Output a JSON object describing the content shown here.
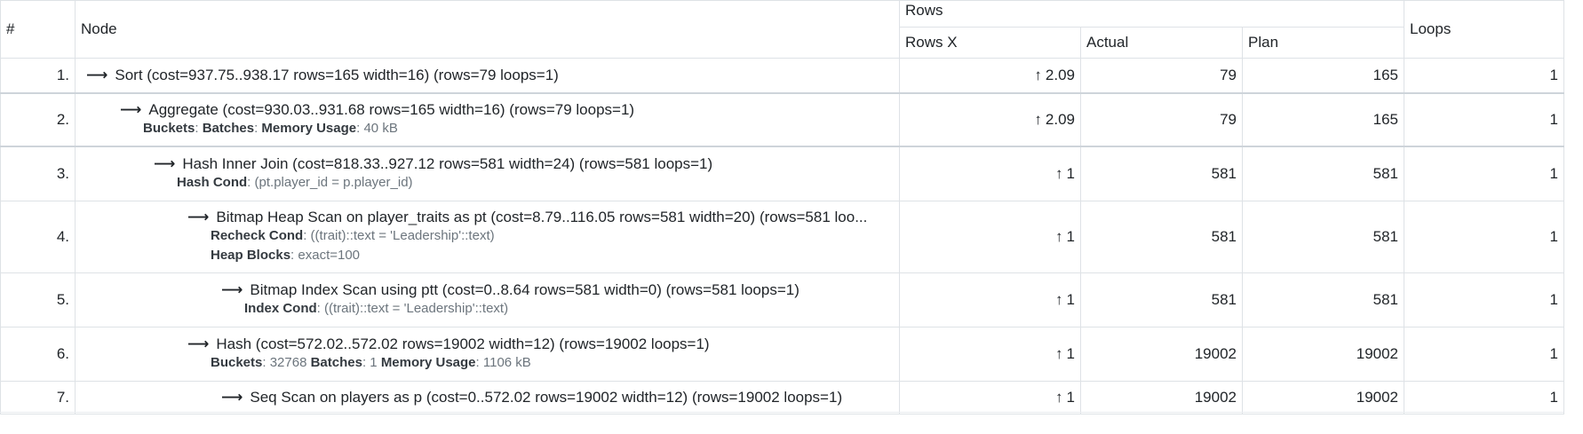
{
  "headers": {
    "index": "#",
    "node": "Node",
    "rows": "Rows",
    "rows_x": "Rows X",
    "actual": "Actual",
    "plan": "Plan",
    "loops": "Loops"
  },
  "rows": [
    {
      "index": "1.",
      "node": "Sort (cost=937.75..938.17 rows=165 width=16) (rows=79 loops=1)",
      "rows_x": "2.09",
      "actual": "79",
      "plan": "165",
      "loops": "1"
    },
    {
      "index": "2.",
      "node": "Aggregate (cost=930.03..931.68 rows=165 width=16) (rows=79 loops=1)",
      "detail_1_label_a": "Buckets",
      "detail_1_label_b": "Batches",
      "detail_1_label_c": "Memory Usage",
      "detail_1_value_c": "40 kB",
      "rows_x": "2.09",
      "actual": "79",
      "plan": "165",
      "loops": "1"
    },
    {
      "index": "3.",
      "node": "Hash Inner Join (cost=818.33..927.12 rows=581 width=24) (rows=581 loops=1)",
      "detail_1_label": "Hash Cond",
      "detail_1_value": "(pt.player_id = p.player_id)",
      "rows_x": "1",
      "actual": "581",
      "plan": "581",
      "loops": "1"
    },
    {
      "index": "4.",
      "node": "Bitmap Heap Scan on player_traits as pt (cost=8.79..116.05 rows=581 width=20) (rows=581 loo...",
      "detail_1_label": "Recheck Cond",
      "detail_1_value": "((trait)::text = 'Leadership'::text)",
      "detail_2_label": "Heap Blocks",
      "detail_2_value": "exact=100",
      "rows_x": "1",
      "actual": "581",
      "plan": "581",
      "loops": "1"
    },
    {
      "index": "5.",
      "node": "Bitmap Index Scan using ptt (cost=0..8.64 rows=581 width=0) (rows=581 loops=1)",
      "detail_1_label": "Index Cond",
      "detail_1_value": "((trait)::text = 'Leadership'::text)",
      "rows_x": "1",
      "actual": "581",
      "plan": "581",
      "loops": "1"
    },
    {
      "index": "6.",
      "node": "Hash (cost=572.02..572.02 rows=19002 width=12) (rows=19002 loops=1)",
      "detail_1_label_a": "Buckets",
      "detail_1_value_a": "32768",
      "detail_1_label_b": "Batches",
      "detail_1_value_b": "1",
      "detail_1_label_c": "Memory Usage",
      "detail_1_value_c": "1106 kB",
      "rows_x": "1",
      "actual": "19002",
      "plan": "19002",
      "loops": "1"
    },
    {
      "index": "7.",
      "node": "Seq Scan on players as p (cost=0..572.02 rows=19002 width=12) (rows=19002 loops=1)",
      "rows_x": "1",
      "actual": "19002",
      "plan": "19002",
      "loops": "1"
    }
  ],
  "icons": {
    "node_arrow": "⟶",
    "rows_x_direction": "↑"
  }
}
